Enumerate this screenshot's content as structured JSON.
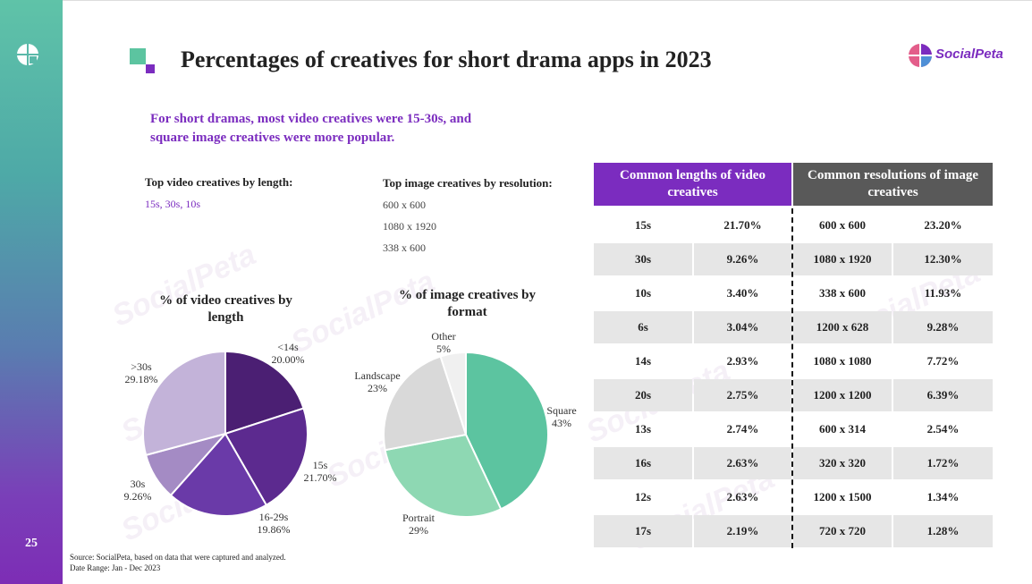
{
  "page_number": "25",
  "title": "Percentages of creatives for short drama apps in 2023",
  "brand": "SocialPeta",
  "subtitle_line1": "For short dramas, most video creatives were 15-30s, and",
  "subtitle_line2": "square image creatives were more popular.",
  "video_top": {
    "heading": "Top video creatives by length:",
    "value": "15s, 30s, 10s"
  },
  "image_top": {
    "heading": "Top image creatives by resolution:",
    "items": [
      "600 x 600",
      "1080 x 1920",
      "338 x 600"
    ]
  },
  "chart_data": [
    {
      "type": "pie",
      "title": "% of video creatives by length",
      "title_line1": "% of video creatives by",
      "title_line2": "length",
      "slices": [
        {
          "label": "<14s",
          "value": 20.0,
          "display": "20.00%",
          "color": "#4b1f73"
        },
        {
          "label": "15s",
          "value": 21.7,
          "display": "21.70%",
          "color": "#5c2a8f"
        },
        {
          "label": "16-29s",
          "value": 19.86,
          "display": "19.86%",
          "color": "#6a3aa8"
        },
        {
          "label": "30s",
          "value": 9.26,
          "display": "9.26%",
          "color": "#a48bc4"
        },
        {
          "label": ">30s",
          "value": 29.18,
          "display": "29.18%",
          "color": "#c3b3d9"
        }
      ]
    },
    {
      "type": "pie",
      "title": "% of image creatives by format",
      "title_line1": "% of image creatives by",
      "title_line2": "format",
      "slices": [
        {
          "label": "Square",
          "value": 43,
          "display": "43%",
          "color": "#5cc4a0"
        },
        {
          "label": "Portrait",
          "value": 29,
          "display": "29%",
          "color": "#8ed8b3"
        },
        {
          "label": "Landscape",
          "value": 23,
          "display": "23%",
          "color": "#d9d9d9"
        },
        {
          "label": "Other",
          "value": 5,
          "display": "5%",
          "color": "#f0f0f0"
        }
      ]
    },
    {
      "type": "table",
      "headers": [
        "Common lengths of video creatives",
        "Common resolutions of image creatives"
      ],
      "rows": [
        {
          "len": "15s",
          "len_pct": "21.70%",
          "res": "600 x 600",
          "res_pct": "23.20%"
        },
        {
          "len": "30s",
          "len_pct": "9.26%",
          "res": "1080 x 1920",
          "res_pct": "12.30%"
        },
        {
          "len": "10s",
          "len_pct": "3.40%",
          "res": "338 x 600",
          "res_pct": "11.93%"
        },
        {
          "len": "6s",
          "len_pct": "3.04%",
          "res": "1200 x 628",
          "res_pct": "9.28%"
        },
        {
          "len": "14s",
          "len_pct": "2.93%",
          "res": "1080 x 1080",
          "res_pct": "7.72%"
        },
        {
          "len": "20s",
          "len_pct": "2.75%",
          "res": "1200 x 1200",
          "res_pct": "6.39%"
        },
        {
          "len": "13s",
          "len_pct": "2.74%",
          "res": "600 x 314",
          "res_pct": "2.54%"
        },
        {
          "len": "16s",
          "len_pct": "2.63%",
          "res": "320 x 320",
          "res_pct": "1.72%"
        },
        {
          "len": "12s",
          "len_pct": "2.63%",
          "res": "1200 x 1500",
          "res_pct": "1.34%"
        },
        {
          "len": "17s",
          "len_pct": "2.19%",
          "res": "720 x 720",
          "res_pct": "1.28%"
        }
      ]
    }
  ],
  "source_line1": "Source: SocialPeta, based on data that were captured and analyzed.",
  "source_line2": "Date Range: Jan - Dec 2023",
  "colors": {
    "purple": "#7b2cbf",
    "header_purple": "#7b2cbf",
    "header_gray": "#595959",
    "teal": "#5cc4a0"
  }
}
